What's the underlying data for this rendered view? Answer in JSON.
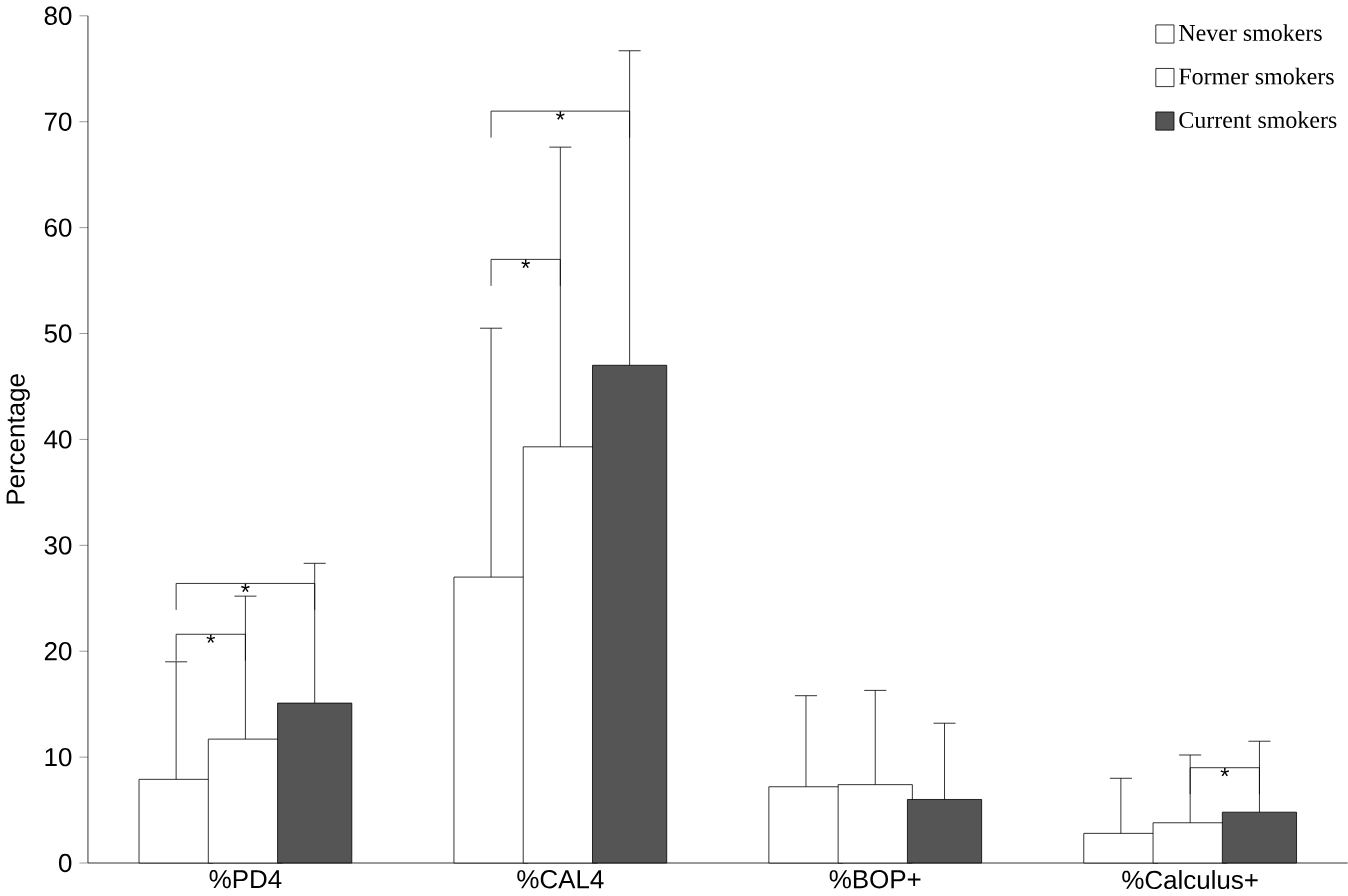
{
  "chart_data": {
    "type": "bar",
    "ylabel": "Percentage",
    "categories": [
      "%PD4",
      "%CAL4",
      "%BOP+",
      "%Calculus+"
    ],
    "series": [
      {
        "name": "Never smokers",
        "color": "#ffffff",
        "values": [
          7.9,
          27,
          7.2,
          2.8
        ],
        "errors": [
          [
            7.9,
            19
          ],
          [
            27,
            50.5
          ],
          [
            7.2,
            15.8
          ],
          [
            2.8,
            8
          ]
        ]
      },
      {
        "name": "Former smokers",
        "color": "#ffffff",
        "values": [
          11.7,
          39.3,
          7.4,
          3.8
        ],
        "errors": [
          [
            11.7,
            25.2
          ],
          [
            39.3,
            67.6
          ],
          [
            7.4,
            16.3
          ],
          [
            3.8,
            10.2
          ]
        ]
      },
      {
        "name": "Current smokers",
        "color": "#555555",
        "values": [
          15.1,
          47,
          6,
          4.8
        ],
        "errors": [
          [
            15.1,
            28.3
          ],
          [
            47,
            76.7
          ],
          [
            6,
            13.2
          ],
          [
            4.8,
            11.5
          ]
        ]
      }
    ],
    "ylim": [
      0,
      80
    ],
    "yticks": [
      0,
      10,
      20,
      30,
      40,
      50,
      60,
      70,
      80
    ],
    "annotations": [
      "*",
      "*",
      "*",
      "*",
      "*"
    ],
    "legend": "top right",
    "grid": false
  }
}
